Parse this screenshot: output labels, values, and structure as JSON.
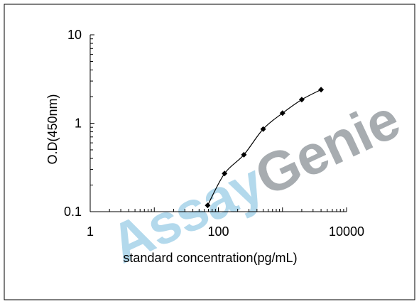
{
  "chart_data": {
    "type": "line",
    "title": "",
    "xlabel": "standard concentration(pg/mL)",
    "ylabel": "O.D(450nm)",
    "x_scale": "log",
    "y_scale": "log",
    "xlim": [
      1,
      10000
    ],
    "ylim": [
      0.1,
      10
    ],
    "x_ticks": [
      "1",
      "100",
      "10000"
    ],
    "y_ticks": [
      "10",
      "1",
      "0.1"
    ],
    "grid": false,
    "legend": "none",
    "series": [
      {
        "x": [
          68,
          125,
          250,
          500,
          1000,
          2000,
          4000
        ],
        "y": [
          0.118,
          0.27,
          0.44,
          0.86,
          1.3,
          1.85,
          2.4
        ],
        "color": "#000000",
        "marker": "diamond"
      }
    ],
    "watermark": {
      "part1": "Assay",
      "part2": "Genie",
      "color1": "#b3d9ec",
      "color2": "#a7acb0"
    }
  }
}
